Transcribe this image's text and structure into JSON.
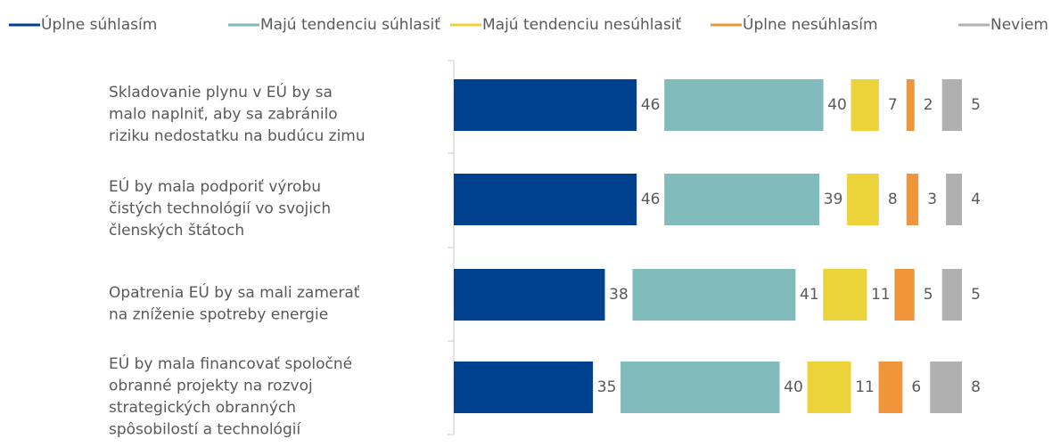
{
  "chart_data": {
    "type": "stacked-bar-h",
    "categories": [
      [
        "Skladovanie plynu v EÚ by sa",
        "malo naplniť, aby sa zabránilo",
        "riziku nedostatku na budúcu zimu"
      ],
      [
        "EÚ by mala podporiť výrobu",
        "čistých technológií vo svojich",
        "členských štátoch"
      ],
      [
        "Opatrenia EÚ by sa mali zamerať",
        "na zníženie spotreby energie"
      ],
      [
        "EÚ by mala financovať spoločné",
        "obranné projekty na rozvoj",
        "strategických obranných",
        "spôsobilostí a technológií"
      ]
    ],
    "series": [
      {
        "name": "Úplne súhlasím",
        "color": "#00418f",
        "values": [
          46,
          46,
          38,
          35
        ]
      },
      {
        "name": "Majú tendenciu súhlasiť",
        "color": "#82bbbb",
        "values": [
          40,
          39,
          41,
          40
        ]
      },
      {
        "name": "Majú tendenciu nesúhlasiť",
        "color": "#ecd33a",
        "values": [
          7,
          8,
          11,
          11
        ]
      },
      {
        "name": "Úplne nesúhlasím",
        "color": "#f0963a",
        "values": [
          2,
          3,
          5,
          6
        ]
      },
      {
        "name": "Neviem",
        "color": "#b0b0b0",
        "values": [
          5,
          4,
          5,
          8
        ]
      }
    ],
    "legend": "top"
  }
}
